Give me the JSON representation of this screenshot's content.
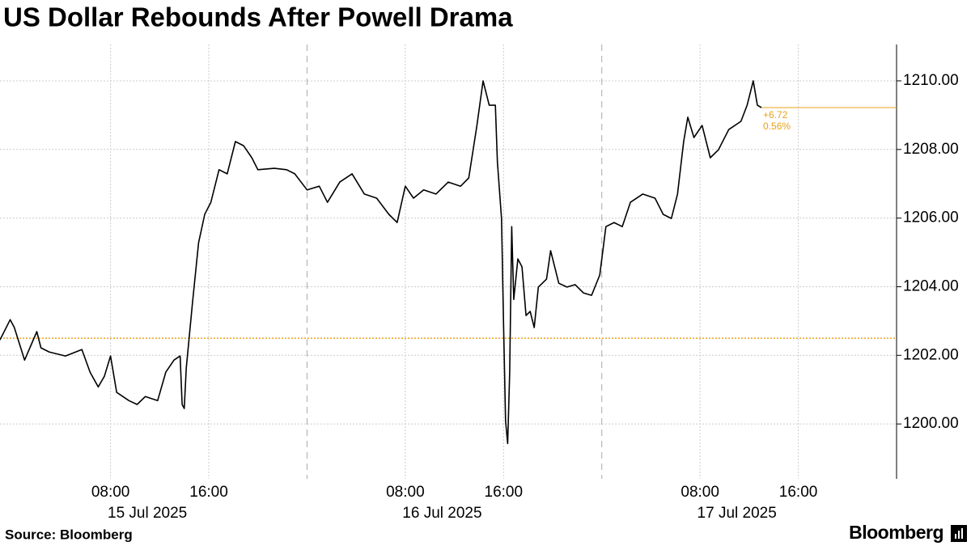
{
  "chart_data": {
    "type": "line",
    "title": "US Dollar Rebounds After Powell Drama",
    "source": "Source: Bloomberg",
    "logo": "Bloomberg",
    "x": [
      "2025-07-14 23:00",
      "2025-07-14 23:50",
      "2025-07-15 00:10",
      "2025-07-15 01:00",
      "2025-07-15 02:00",
      "2025-07-15 02:20",
      "2025-07-15 03:00",
      "2025-07-15 04:20",
      "2025-07-15 05:40",
      "2025-07-15 06:20",
      "2025-07-15 07:00",
      "2025-07-15 07:30",
      "2025-07-15 08:00",
      "2025-07-15 08:30",
      "2025-07-15 09:30",
      "2025-07-15 10:10",
      "2025-07-15 10:50",
      "2025-07-15 11:50",
      "2025-07-15 12:30",
      "2025-07-15 13:10",
      "2025-07-15 13:40",
      "2025-07-15 13:50",
      "2025-07-15 14:00",
      "2025-07-15 14:10",
      "2025-07-15 14:40",
      "2025-07-15 15:10",
      "2025-07-15 15:40",
      "2025-07-15 16:10",
      "2025-07-15 16:50",
      "2025-07-15 17:30",
      "2025-07-15 18:10",
      "2025-07-15 18:50",
      "2025-07-15 19:30",
      "2025-07-15 20:00",
      "2025-07-15 21:20",
      "2025-07-15 22:20",
      "2025-07-15 23:00",
      "2025-07-16 00:00",
      "2025-07-16 01:00",
      "2025-07-16 01:40",
      "2025-07-16 02:40",
      "2025-07-16 03:40",
      "2025-07-16 04:40",
      "2025-07-16 05:40",
      "2025-07-16 06:40",
      "2025-07-16 07:20",
      "2025-07-16 08:00",
      "2025-07-16 08:40",
      "2025-07-16 09:30",
      "2025-07-16 10:30",
      "2025-07-16 11:30",
      "2025-07-16 12:30",
      "2025-07-16 13:10",
      "2025-07-16 13:50",
      "2025-07-16 14:20",
      "2025-07-16 14:50",
      "2025-07-16 15:20",
      "2025-07-16 15:30",
      "2025-07-16 15:50",
      "2025-07-16 16:00",
      "2025-07-16 16:10",
      "2025-07-16 16:20",
      "2025-07-16 16:30",
      "2025-07-16 16:40",
      "2025-07-16 16:50",
      "2025-07-16 17:10",
      "2025-07-16 17:30",
      "2025-07-16 17:50",
      "2025-07-16 18:10",
      "2025-07-16 18:30",
      "2025-07-16 18:50",
      "2025-07-16 19:30",
      "2025-07-16 19:50",
      "2025-07-16 20:30",
      "2025-07-16 21:10",
      "2025-07-16 21:50",
      "2025-07-16 22:30",
      "2025-07-16 23:10",
      "2025-07-16 23:50",
      "2025-07-17 00:20",
      "2025-07-17 01:00",
      "2025-07-17 01:40",
      "2025-07-17 02:20",
      "2025-07-17 03:20",
      "2025-07-17 04:20",
      "2025-07-17 05:00",
      "2025-07-17 05:40",
      "2025-07-17 06:10",
      "2025-07-17 06:40",
      "2025-07-17 07:00",
      "2025-07-17 07:30",
      "2025-07-17 08:10",
      "2025-07-17 08:50",
      "2025-07-17 09:30",
      "2025-07-17 10:20",
      "2025-07-17 11:20",
      "2025-07-17 11:50",
      "2025-07-17 12:20",
      "2025-07-17 12:40",
      "2025-07-17 13:00"
    ],
    "series": [
      {
        "color": "#000000",
        "values": [
          1202.45,
          1203.04,
          1202.81,
          1201.86,
          1202.69,
          1202.22,
          1202.1,
          1201.98,
          1202.17,
          1201.51,
          1201.08,
          1201.39,
          1201.98,
          1200.92,
          1200.68,
          1200.57,
          1200.8,
          1200.68,
          1201.51,
          1201.86,
          1201.98,
          1200.57,
          1200.45,
          1201.63,
          1203.51,
          1205.28,
          1206.11,
          1206.46,
          1207.41,
          1207.29,
          1208.23,
          1208.11,
          1207.76,
          1207.41,
          1207.45,
          1207.41,
          1207.29,
          1206.82,
          1206.93,
          1206.46,
          1207.05,
          1207.29,
          1206.7,
          1206.58,
          1206.11,
          1205.87,
          1206.93,
          1206.58,
          1206.82,
          1206.7,
          1207.05,
          1206.93,
          1207.17,
          1208.7,
          1210.0,
          1209.29,
          1209.29,
          1207.64,
          1205.99,
          1202.92,
          1200.09,
          1199.43,
          1201.51,
          1205.75,
          1203.63,
          1204.81,
          1204.58,
          1203.16,
          1203.28,
          1202.81,
          1203.99,
          1204.22,
          1205.05,
          1204.1,
          1203.99,
          1204.06,
          1203.82,
          1203.75,
          1204.34,
          1205.75,
          1205.87,
          1205.75,
          1206.46,
          1206.7,
          1206.58,
          1206.11,
          1205.99,
          1206.7,
          1208.23,
          1208.94,
          1208.35,
          1208.7,
          1207.76,
          1207.99,
          1208.58,
          1208.82,
          1209.29,
          1210.0,
          1209.29,
          1209.22
        ]
      }
    ],
    "xlim": [
      "2025-07-14 23:00",
      "2025-07-18 00:00"
    ],
    "xticks": [
      {
        "value": "2025-07-15 08:00",
        "label": "08:00"
      },
      {
        "value": "2025-07-15 16:00",
        "label": "16:00"
      },
      {
        "value": "2025-07-16 08:00",
        "label": "08:00"
      },
      {
        "value": "2025-07-16 16:00",
        "label": "16:00"
      },
      {
        "value": "2025-07-17 08:00",
        "label": "08:00"
      },
      {
        "value": "2025-07-17 16:00",
        "label": "16:00"
      }
    ],
    "date_labels": [
      {
        "value": "2025-07-15 11:00",
        "label": "15 Jul 2025"
      },
      {
        "value": "2025-07-16 11:00",
        "label": "16 Jul 2025"
      },
      {
        "value": "2025-07-17 11:00",
        "label": "17 Jul 2025"
      }
    ],
    "day_boundaries": [
      "2025-07-16 00:00",
      "2025-07-17 00:00"
    ],
    "ylim": [
      1198.4,
      1211.06
    ],
    "yticks": [
      {
        "value": 1200,
        "label": "1200.00"
      },
      {
        "value": 1202,
        "label": "1202.00"
      },
      {
        "value": 1204,
        "label": "1204.00"
      },
      {
        "value": 1206,
        "label": "1206.00"
      },
      {
        "value": 1208,
        "label": "1208.00"
      },
      {
        "value": 1210,
        "label": "1210.00"
      }
    ],
    "grid": true,
    "reference_line": {
      "value": 1202.5,
      "color": "#e8a21a"
    },
    "last_value_line": {
      "value": 1209.22,
      "color": "#e8a21a"
    },
    "annotations": [
      "+6.72",
      "0.56%"
    ]
  }
}
